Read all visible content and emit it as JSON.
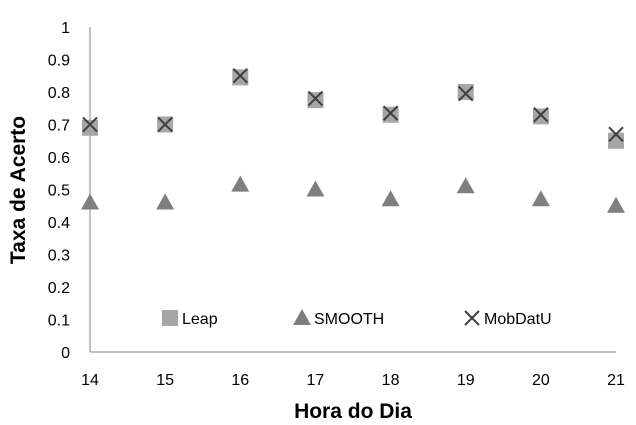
{
  "chart_data": {
    "type": "scatter",
    "xlabel": "Hora do Dia",
    "ylabel": "Taxa de Acerto",
    "xlim": [
      14,
      21
    ],
    "ylim": [
      0,
      1
    ],
    "x_ticks": [
      "14",
      "15",
      "16",
      "17",
      "18",
      "19",
      "20",
      "21"
    ],
    "y_ticks": [
      "0",
      "0.1",
      "0.2",
      "0.3",
      "0.4",
      "0.5",
      "0.6",
      "0.7",
      "0.8",
      "0.9",
      "1"
    ],
    "grid": false,
    "legend_position": "bottom",
    "x": [
      14,
      15,
      16,
      17,
      18,
      19,
      20,
      21
    ],
    "series": [
      {
        "name": "Leap",
        "marker": "square",
        "color": "#a6a6a6",
        "values": [
          0.69,
          0.7,
          0.845,
          0.775,
          0.73,
          0.8,
          0.725,
          0.65
        ]
      },
      {
        "name": "SMOOTH",
        "marker": "triangle",
        "color": "#7f7f7f",
        "values": [
          0.46,
          0.46,
          0.515,
          0.5,
          0.47,
          0.51,
          0.47,
          0.45
        ]
      },
      {
        "name": "MobDatU",
        "marker": "x",
        "color": "#404040",
        "values": [
          0.7,
          0.7,
          0.85,
          0.78,
          0.735,
          0.795,
          0.73,
          0.67
        ]
      }
    ]
  }
}
